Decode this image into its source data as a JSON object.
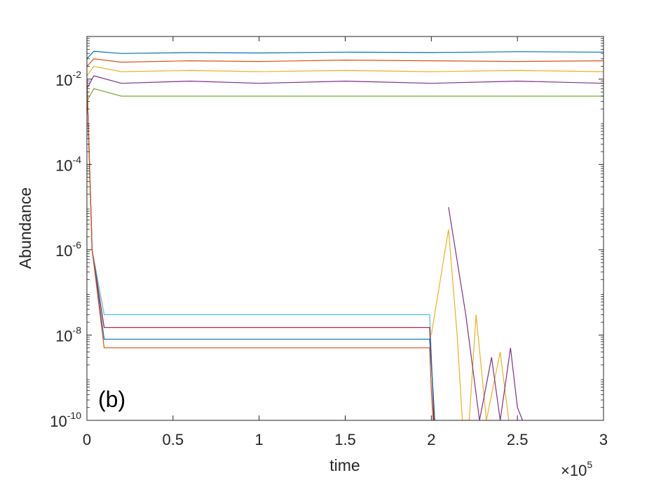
{
  "chart_data": {
    "type": "line",
    "title": "",
    "panel_label": "(b)",
    "xlabel": "time",
    "ylabel": "Abundance",
    "x_scale_factor_label": "×10",
    "x_scale_factor_exponent": "5",
    "xlim": [
      0,
      300000
    ],
    "ylim": [
      1e-10,
      0.1
    ],
    "y_scale": "log",
    "grid": false,
    "legend": "none",
    "x_ticks": [
      {
        "value": 0,
        "label": "0"
      },
      {
        "value": 50000,
        "label": "0.5"
      },
      {
        "value": 100000,
        "label": "1"
      },
      {
        "value": 150000,
        "label": "1.5"
      },
      {
        "value": 200000,
        "label": "2"
      },
      {
        "value": 250000,
        "label": "2.5"
      },
      {
        "value": 300000,
        "label": "3"
      }
    ],
    "y_ticks": [
      {
        "value": 1e-10,
        "base": "10",
        "exp": "-10"
      },
      {
        "value": 1e-08,
        "base": "10",
        "exp": "-8"
      },
      {
        "value": 1e-06,
        "base": "10",
        "exp": "-6"
      },
      {
        "value": 0.0001,
        "base": "10",
        "exp": "-4"
      },
      {
        "value": 0.01,
        "base": "10",
        "exp": "-2"
      }
    ],
    "series_colors": [
      "#0072BD",
      "#D95319",
      "#EDB120",
      "#7E2F8E",
      "#77AC30",
      "#4DBEEE",
      "#A2142F"
    ],
    "series": [
      {
        "x": [
          0,
          4000,
          20000,
          60000,
          100000,
          150000,
          200000,
          250000,
          300000
        ],
        "y": [
          0.03,
          0.045,
          0.04,
          0.042,
          0.041,
          0.043,
          0.042,
          0.044,
          0.043
        ]
      },
      {
        "x": [
          0,
          4000,
          20000,
          60000,
          100000,
          150000,
          200000,
          250000,
          300000
        ],
        "y": [
          0.02,
          0.03,
          0.025,
          0.027,
          0.026,
          0.028,
          0.027,
          0.026,
          0.027
        ]
      },
      {
        "x": [
          0,
          4000,
          20000,
          60000,
          100000,
          150000,
          200000,
          250000,
          300000
        ],
        "y": [
          0.012,
          0.02,
          0.015,
          0.016,
          0.015,
          0.016,
          0.015,
          0.016,
          0.015
        ]
      },
      {
        "x": [
          0,
          4000,
          20000,
          60000,
          100000,
          150000,
          200000,
          250000,
          300000
        ],
        "y": [
          0.006,
          0.012,
          0.008,
          0.009,
          0.008,
          0.009,
          0.008,
          0.009,
          0.008
        ]
      },
      {
        "x": [
          0,
          4000,
          20000,
          60000,
          100000,
          150000,
          200000,
          250000,
          300000
        ],
        "y": [
          0.003,
          0.006,
          0.004,
          0.004,
          0.004,
          0.004,
          0.004,
          0.004,
          0.004
        ]
      },
      {
        "x": [
          0,
          3000,
          10000,
          50000,
          100000,
          150000,
          199000,
          200500,
          201500
        ],
        "y": [
          0.01,
          1e-06,
          3e-08,
          3e-08,
          3e-08,
          3e-08,
          3e-08,
          1e-09,
          1e-10
        ]
      },
      {
        "x": [
          0,
          3000,
          10000,
          50000,
          100000,
          150000,
          199000,
          200500,
          201500
        ],
        "y": [
          0.01,
          1e-06,
          1.5e-08,
          1.5e-08,
          1.5e-08,
          1.5e-08,
          1.5e-08,
          1e-09,
          1e-10
        ]
      },
      {
        "x": [
          0,
          3000,
          10000,
          50000,
          100000,
          150000,
          199000,
          201000,
          202000
        ],
        "y": [
          0.01,
          1e-06,
          8e-09,
          8e-09,
          8e-09,
          8e-09,
          8e-09,
          5e-10,
          1e-10
        ]
      },
      {
        "x": [
          0,
          3000,
          10000,
          50000,
          100000,
          150000,
          199000,
          200000,
          201000
        ],
        "y": [
          0.01,
          1e-06,
          5e-09,
          5e-09,
          5e-09,
          5e-09,
          5e-09,
          5e-10,
          1e-10
        ]
      },
      {
        "x": [
          200000,
          210000,
          215000,
          218000,
          222000,
          226000,
          232000,
          240000,
          245000
        ],
        "y": [
          1e-08,
          3e-06,
          1e-08,
          1e-10,
          1e-10,
          3e-08,
          1e-10,
          4e-09,
          1e-10
        ]
      },
      {
        "x": [
          210000,
          220000,
          228000,
          235000,
          240000,
          246000,
          250000,
          253000
        ],
        "y": [
          1e-05,
          3e-08,
          1e-10,
          3e-09,
          1e-10,
          5e-09,
          2e-10,
          1e-10
        ]
      }
    ]
  }
}
